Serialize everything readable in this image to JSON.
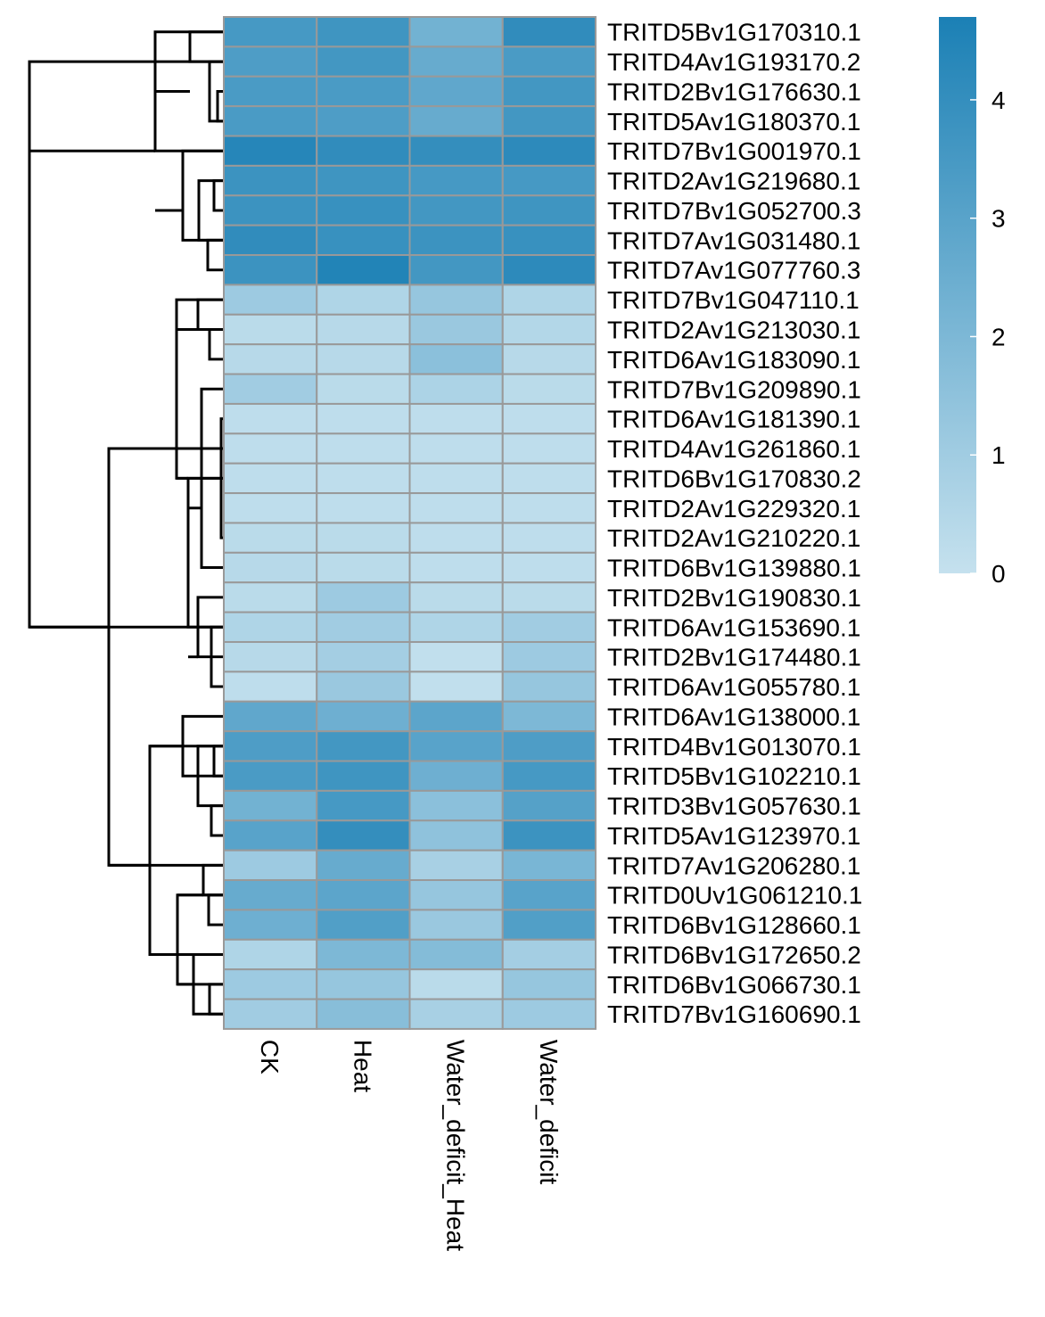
{
  "chart_data": {
    "type": "heatmap",
    "columns": [
      "CK",
      "Heat",
      "Water_deficit_Heat",
      "Water_deficit"
    ],
    "rows": [
      "TRITD5Bv1G170310.1",
      "TRITD4Av1G193170.2",
      "TRITD2Bv1G176630.1",
      "TRITD5Av1G180370.1",
      "TRITD7Bv1G001970.1",
      "TRITD2Av1G219680.1",
      "TRITD7Bv1G052700.3",
      "TRITD7Av1G031480.1",
      "TRITD7Av1G077760.3",
      "TRITD7Bv1G047110.1",
      "TRITD2Av1G213030.1",
      "TRITD6Av1G183090.1",
      "TRITD7Bv1G209890.1",
      "TRITD6Av1G181390.1",
      "TRITD4Av1G261860.1",
      "TRITD6Bv1G170830.2",
      "TRITD2Av1G229320.1",
      "TRITD2Av1G210220.1",
      "TRITD6Bv1G139880.1",
      "TRITD2Bv1G190830.1",
      "TRITD6Av1G153690.1",
      "TRITD2Bv1G174480.1",
      "TRITD6Av1G055780.1",
      "TRITD6Av1G138000.1",
      "TRITD4Bv1G013070.1",
      "TRITD5Bv1G102210.1",
      "TRITD3Bv1G057630.1",
      "TRITD5Av1G123970.1",
      "TRITD7Av1G206280.1",
      "TRITD0Uv1G061210.1",
      "TRITD6Bv1G128660.1",
      "TRITD6Bv1G172650.2",
      "TRITD6Bv1G066730.1",
      "TRITD7Bv1G160690.1"
    ],
    "values": [
      [
        3.5,
        3.7,
        2.3,
        4.1
      ],
      [
        3.3,
        3.6,
        2.6,
        3.4
      ],
      [
        3.4,
        3.4,
        2.8,
        3.6
      ],
      [
        3.4,
        3.3,
        2.6,
        3.6
      ],
      [
        4.4,
        4.1,
        4.0,
        4.2
      ],
      [
        3.8,
        3.7,
        3.5,
        3.5
      ],
      [
        3.8,
        3.9,
        3.6,
        3.7
      ],
      [
        4.1,
        3.9,
        3.8,
        3.9
      ],
      [
        3.8,
        4.5,
        3.6,
        4.2
      ],
      [
        1.1,
        0.6,
        1.3,
        0.6
      ],
      [
        0.3,
        0.4,
        1.2,
        0.5
      ],
      [
        0.4,
        0.4,
        1.6,
        0.4
      ],
      [
        1.0,
        0.3,
        0.7,
        0.3
      ],
      [
        0.2,
        0.2,
        0.2,
        0.2
      ],
      [
        0.2,
        0.2,
        0.2,
        0.2
      ],
      [
        0.2,
        0.2,
        0.2,
        0.2
      ],
      [
        0.2,
        0.2,
        0.2,
        0.2
      ],
      [
        0.3,
        0.3,
        0.2,
        0.2
      ],
      [
        0.4,
        0.3,
        0.2,
        0.2
      ],
      [
        0.3,
        1.1,
        0.3,
        0.3
      ],
      [
        0.6,
        1.0,
        0.6,
        1.0
      ],
      [
        0.4,
        0.9,
        0.1,
        1.1
      ],
      [
        0.2,
        1.2,
        0.1,
        1.3
      ],
      [
        2.8,
        2.4,
        2.9,
        2.0
      ],
      [
        3.3,
        3.6,
        3.0,
        3.3
      ],
      [
        3.4,
        3.7,
        2.4,
        3.5
      ],
      [
        2.3,
        3.5,
        1.6,
        3.1
      ],
      [
        3.0,
        4.0,
        1.5,
        3.8
      ],
      [
        1.1,
        2.6,
        0.8,
        2.1
      ],
      [
        2.6,
        2.9,
        1.3,
        3.0
      ],
      [
        2.4,
        3.2,
        1.2,
        3.2
      ],
      [
        0.6,
        2.0,
        1.8,
        0.9
      ],
      [
        1.1,
        1.3,
        0.3,
        1.3
      ],
      [
        1.0,
        1.7,
        0.8,
        1.1
      ]
    ],
    "color_scale": {
      "min": 0,
      "max": 4.7,
      "low_color": "#c5e1ee",
      "high_color": "#1b80b5",
      "ticks": [
        0,
        1,
        2,
        3,
        4
      ]
    },
    "title": "",
    "xlabel": "",
    "ylabel": "",
    "row_dendrogram": true,
    "legend_placement": "top-right"
  }
}
